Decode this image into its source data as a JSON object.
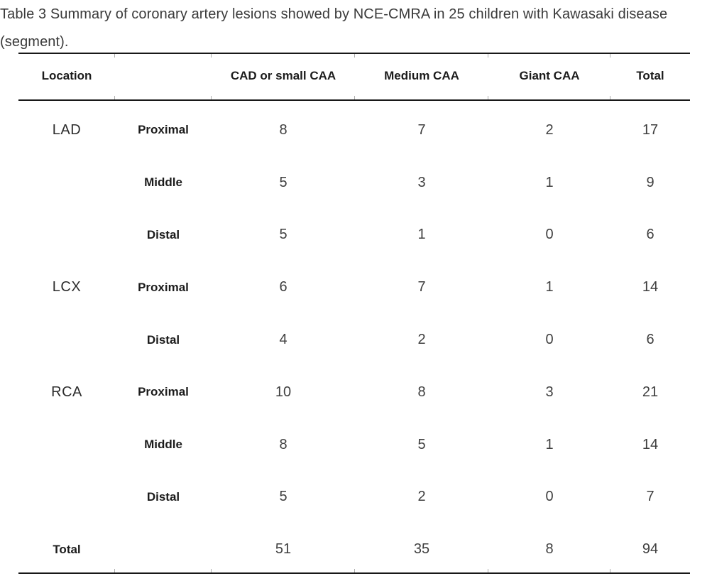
{
  "title": "Table 3 Summary of coronary artery lesions showed by NCE-CMRA in 25 children with Kawasaki disease (segment).",
  "colors": {
    "rule": "#181818",
    "tick": "#adadad",
    "title_text": "#3a3a3a",
    "number_text": "#3f3f3f",
    "bold_text": "#1c1c1c"
  },
  "table": {
    "headers": {
      "location": "Location",
      "segment": "",
      "cad_small_caa": "CAD or small CAA",
      "medium_caa": "Medium CAA",
      "giant_caa": "Giant CAA",
      "total": "Total"
    },
    "rows": [
      {
        "group": "LAD",
        "segment": "Proximal",
        "cad_small_caa": "8",
        "medium_caa": "7",
        "giant_caa": "2",
        "total": "17"
      },
      {
        "group": "",
        "segment": "Middle",
        "cad_small_caa": "5",
        "medium_caa": "3",
        "giant_caa": "1",
        "total": "9"
      },
      {
        "group": "",
        "segment": "Distal",
        "cad_small_caa": "5",
        "medium_caa": "1",
        "giant_caa": "0",
        "total": "6"
      },
      {
        "group": "LCX",
        "segment": "Proximal",
        "cad_small_caa": "6",
        "medium_caa": "7",
        "giant_caa": "1",
        "total": "14"
      },
      {
        "group": "",
        "segment": "Distal",
        "cad_small_caa": "4",
        "medium_caa": "2",
        "giant_caa": "0",
        "total": "6"
      },
      {
        "group": "RCA",
        "segment": "Proximal",
        "cad_small_caa": "10",
        "medium_caa": "8",
        "giant_caa": "3",
        "total": "21"
      },
      {
        "group": "",
        "segment": "Middle",
        "cad_small_caa": "8",
        "medium_caa": "5",
        "giant_caa": "1",
        "total": "14"
      },
      {
        "group": "",
        "segment": "Distal",
        "cad_small_caa": "5",
        "medium_caa": "2",
        "giant_caa": "0",
        "total": "7"
      },
      {
        "group": "Total",
        "segment": "",
        "cad_small_caa": "51",
        "medium_caa": "35",
        "giant_caa": "8",
        "total": "94"
      }
    ]
  }
}
